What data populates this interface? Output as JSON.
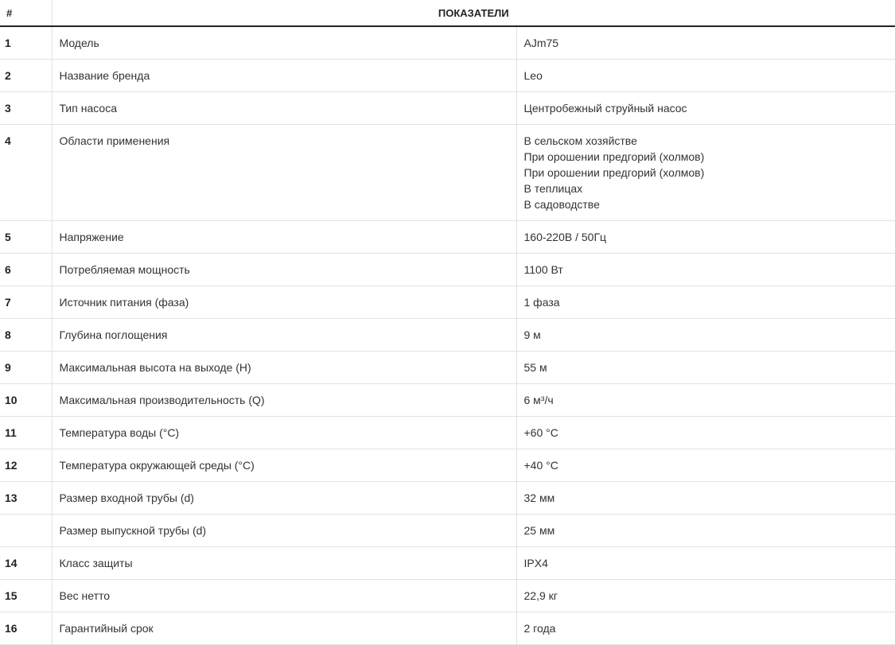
{
  "table": {
    "header": {
      "num_label": "#",
      "title": "ПОКАЗАТЕЛИ"
    },
    "rows": [
      {
        "num": "1",
        "name": "Модель",
        "value": [
          "AJm75"
        ]
      },
      {
        "num": "2",
        "name": "Название бренда",
        "value": [
          "Leo"
        ]
      },
      {
        "num": "3",
        "name": "Тип насоса",
        "value": [
          "Центробежный струйный насос"
        ]
      },
      {
        "num": "4",
        "name": "Области применения",
        "value": [
          "В сельском хозяйстве",
          "При орошении предгорий (холмов)",
          "При орошении предгорий (холмов)",
          "В теплицах",
          "В садоводстве"
        ]
      },
      {
        "num": "5",
        "name": "Напряжение",
        "value": [
          "160-220В / 50Гц"
        ]
      },
      {
        "num": "6",
        "name": "Потребляемая мощность",
        "value": [
          "1100 Вт"
        ]
      },
      {
        "num": "7",
        "name": "Источник питания (фаза)",
        "value": [
          "1 фаза"
        ]
      },
      {
        "num": "8",
        "name": "Глубина поглощения",
        "value": [
          "9 м"
        ]
      },
      {
        "num": "9",
        "name": "Максимальная высота на выходе (H)",
        "value": [
          "55 м"
        ]
      },
      {
        "num": "10",
        "name": "Максимальная производительность (Q)",
        "value": [
          "6 м³/ч"
        ]
      },
      {
        "num": "11",
        "name": "Температура воды (°C)",
        "value": [
          "+60 °C"
        ]
      },
      {
        "num": "12",
        "name": "Температура окружающей среды (°C)",
        "value": [
          "+40 °C"
        ]
      },
      {
        "num": "13",
        "name": "Размер входной трубы (d)",
        "value": [
          "32 мм"
        ]
      },
      {
        "num": "",
        "name": "Размер выпускной трубы (d)",
        "value": [
          "25 мм"
        ]
      },
      {
        "num": "14",
        "name": "Класс защиты",
        "value": [
          "IPX4"
        ]
      },
      {
        "num": "15",
        "name": "Вес нетто",
        "value": [
          "22,9 кг"
        ]
      },
      {
        "num": "16",
        "name": "Гарантийный срок",
        "value": [
          "2 года"
        ]
      }
    ]
  }
}
